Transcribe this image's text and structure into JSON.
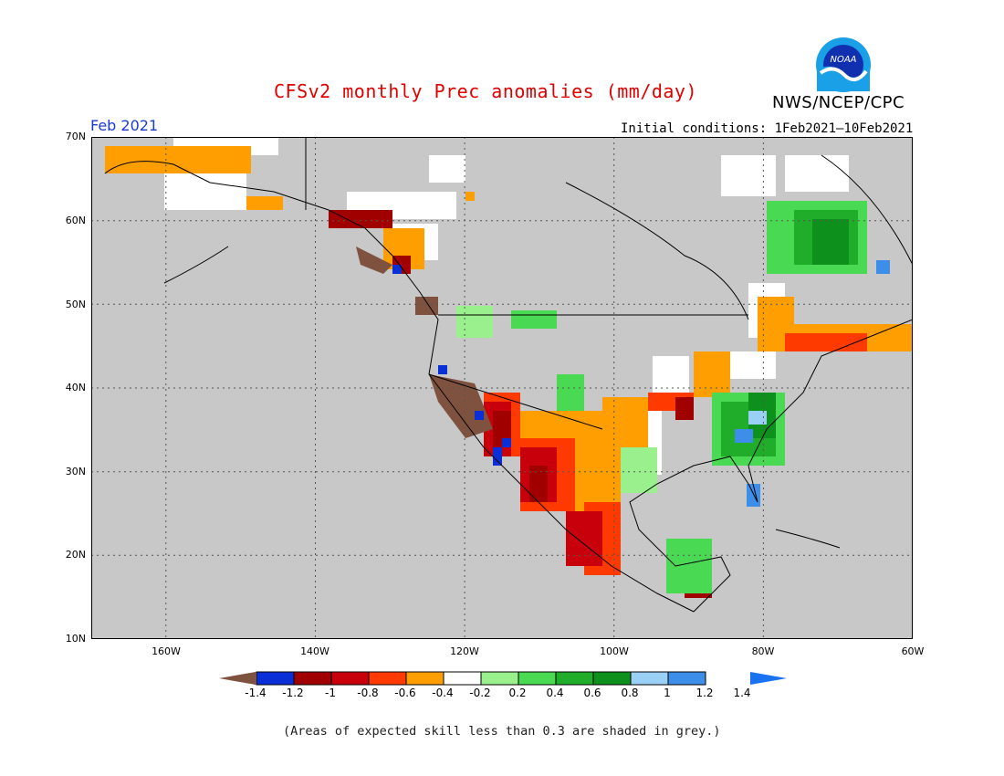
{
  "header": {
    "title": "CFSv2 monthly Prec anomalies (mm/day)",
    "agency": "NWS/NCEP/CPC",
    "month": "Feb 2021",
    "initial_conditions": "Initial conditions: 1Feb2021–10Feb2021",
    "logo_text": "NOAA"
  },
  "map": {
    "projection": "equirectangular",
    "lon_range": [
      -170,
      -60
    ],
    "lat_range": [
      10,
      70
    ],
    "gridlines": "dotted",
    "lat_labels": [
      "70N",
      "60N",
      "50N",
      "40N",
      "30N",
      "20N",
      "10N"
    ],
    "lon_labels": [
      "160W",
      "140W",
      "120W",
      "100W",
      "80W",
      "60W"
    ],
    "masked_color": "#c8c8c8",
    "regions": [
      {
        "name": "Pacific Northwest / California coast",
        "category": "-1.4"
      },
      {
        "name": "Southwest US / NW Mexico",
        "category": "-1.0"
      },
      {
        "name": "Texas / Northern Mexico",
        "category": "-0.4"
      },
      {
        "name": "Southeast US",
        "category": "0.8"
      },
      {
        "name": "Florida",
        "category": "1.2"
      },
      {
        "name": "Quebec / Labrador",
        "category": "0.8"
      },
      {
        "name": "Northeast US / Great Lakes",
        "category": "-0.4"
      }
    ]
  },
  "legend": {
    "tick_labels": [
      "-1.4",
      "-1.2",
      "-1",
      "-0.8",
      "-0.6",
      "-0.4",
      "-0.2",
      "0.2",
      "0.4",
      "0.6",
      "0.8",
      "1",
      "1.2",
      "1.4"
    ],
    "colors": [
      "#7f5240",
      "#0b2fd6",
      "#a00000",
      "#c8000c",
      "#ff3a00",
      "#ff9e00",
      "#ffffff",
      "#9af08c",
      "#4ad952",
      "#1fad2a",
      "#0d901c",
      "#9ad0f5",
      "#3c8ee8",
      "#1a72f0"
    ],
    "low_arrow_color": "#7f5240",
    "high_arrow_color": "#1a72f0"
  },
  "footer": {
    "note": "(Areas of expected skill less than 0.3 are shaded in grey.)"
  }
}
